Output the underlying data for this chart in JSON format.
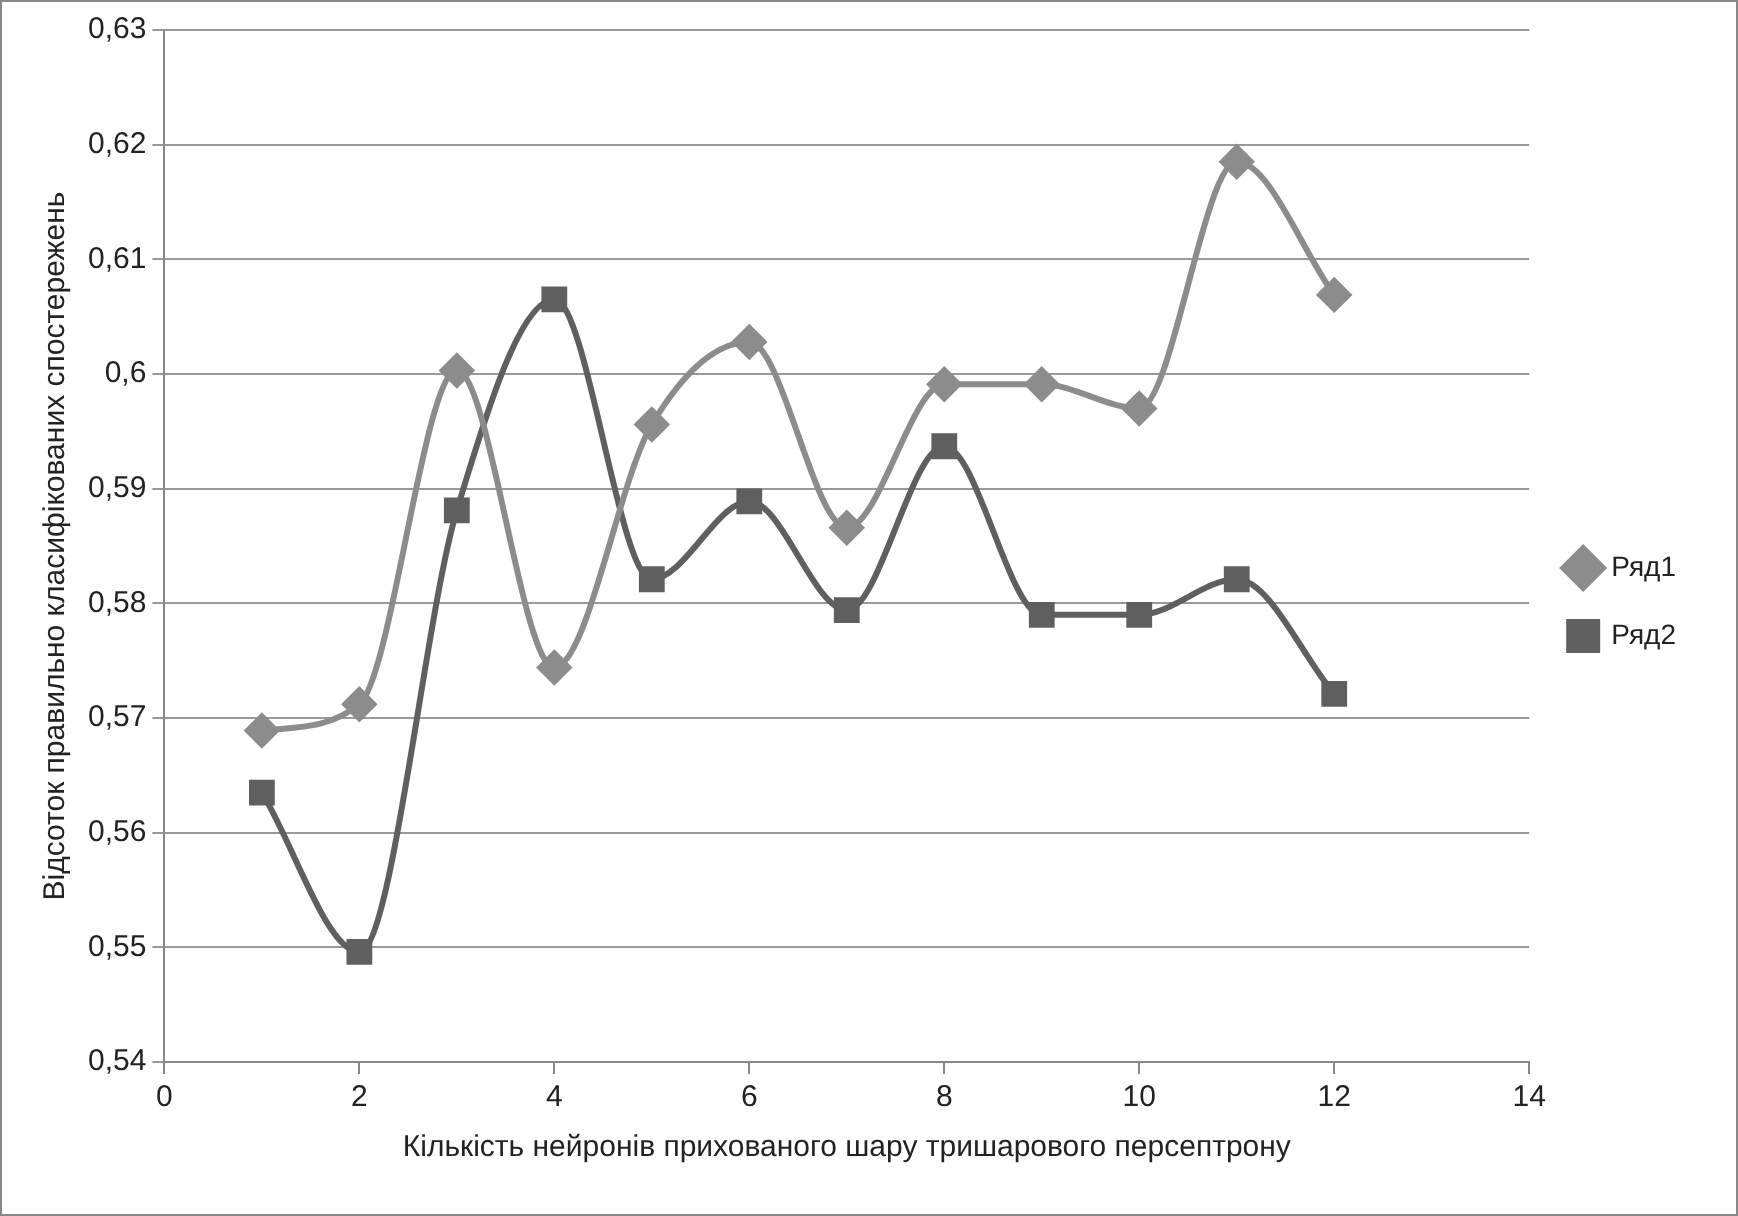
{
  "chart_data": {
    "type": "line",
    "xlabel": "Кількість нейронів прихованого шару тришарового персептрону",
    "ylabel": "Відсоток правильно класифікованих спостережень",
    "x": [
      1,
      2,
      3,
      4,
      5,
      6,
      7,
      8,
      9,
      10,
      11,
      12
    ],
    "series": [
      {
        "name": "Ряд1",
        "color": "#8c8c8c",
        "marker": "diamond",
        "values": [
          0.5689,
          0.5712,
          0.6003,
          0.5744,
          0.5956,
          0.6028,
          0.5866,
          0.5991,
          0.5991,
          0.597,
          0.6185,
          0.6069
        ]
      },
      {
        "name": "Ряд2",
        "color": "#5f5f5f",
        "marker": "square",
        "values": [
          0.5635,
          0.5496,
          0.5881,
          0.6065,
          0.5821,
          0.5889,
          0.5794,
          0.5937,
          0.579,
          0.579,
          0.5821,
          0.5721
        ]
      }
    ],
    "xlim": [
      0,
      14
    ],
    "xticks": [
      0,
      2,
      4,
      6,
      8,
      10,
      12,
      14
    ],
    "ylim": [
      0.54,
      0.63
    ],
    "yticks": [
      {
        "value": 0.54,
        "label": "0,54"
      },
      {
        "value": 0.55,
        "label": "0,55"
      },
      {
        "value": 0.56,
        "label": "0,56"
      },
      {
        "value": 0.57,
        "label": "0,57"
      },
      {
        "value": 0.58,
        "label": "0,58"
      },
      {
        "value": 0.59,
        "label": "0,59"
      },
      {
        "value": 0.6,
        "label": "0,6"
      },
      {
        "value": 0.61,
        "label": "0,61"
      },
      {
        "value": 0.62,
        "label": "0,62"
      },
      {
        "value": 0.63,
        "label": "0,63"
      }
    ],
    "grid": "y",
    "legend": "right",
    "line_style": "solid"
  }
}
